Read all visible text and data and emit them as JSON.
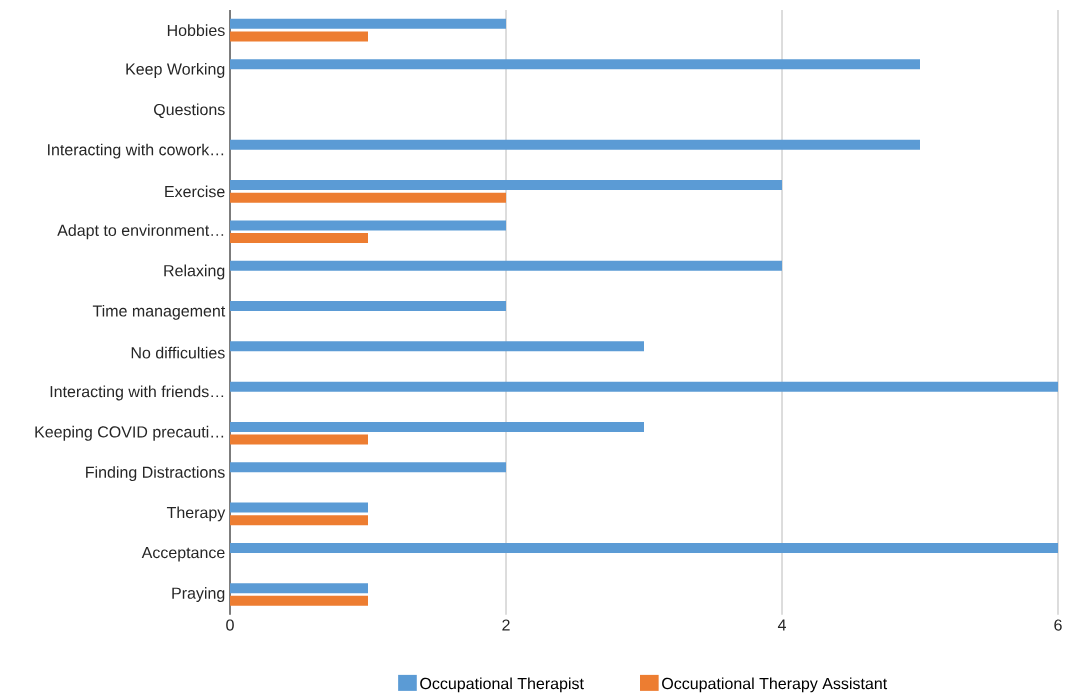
{
  "chart_data": {
    "type": "bar",
    "orientation": "horizontal",
    "categories": [
      "Hobbies",
      "Keep Working",
      "Questions",
      "Interacting with cowork…",
      "Exercise",
      "Adapt to environment…",
      "Relaxing",
      "Time management",
      "No difficulties",
      "Interacting with friends…",
      "Keeping COVID precauti…",
      "Finding Distractions",
      "Therapy",
      "Acceptance",
      "Praying"
    ],
    "series": [
      {
        "name": "Occupational Therapist",
        "color": "#5b9bd5",
        "values": [
          2,
          5,
          0,
          5,
          4,
          2,
          4,
          2,
          3,
          6,
          3,
          2,
          1,
          6,
          1
        ]
      },
      {
        "name": "Occupational Therapy Assistant",
        "color": "#ed7d31",
        "values": [
          1,
          0,
          0,
          0,
          2,
          1,
          0,
          0,
          0,
          0,
          1,
          0,
          1,
          0,
          1
        ]
      }
    ],
    "xlim": [
      0,
      6
    ],
    "xticks": [
      0,
      2,
      4,
      6
    ],
    "grid": "x",
    "legend": "bottom"
  }
}
